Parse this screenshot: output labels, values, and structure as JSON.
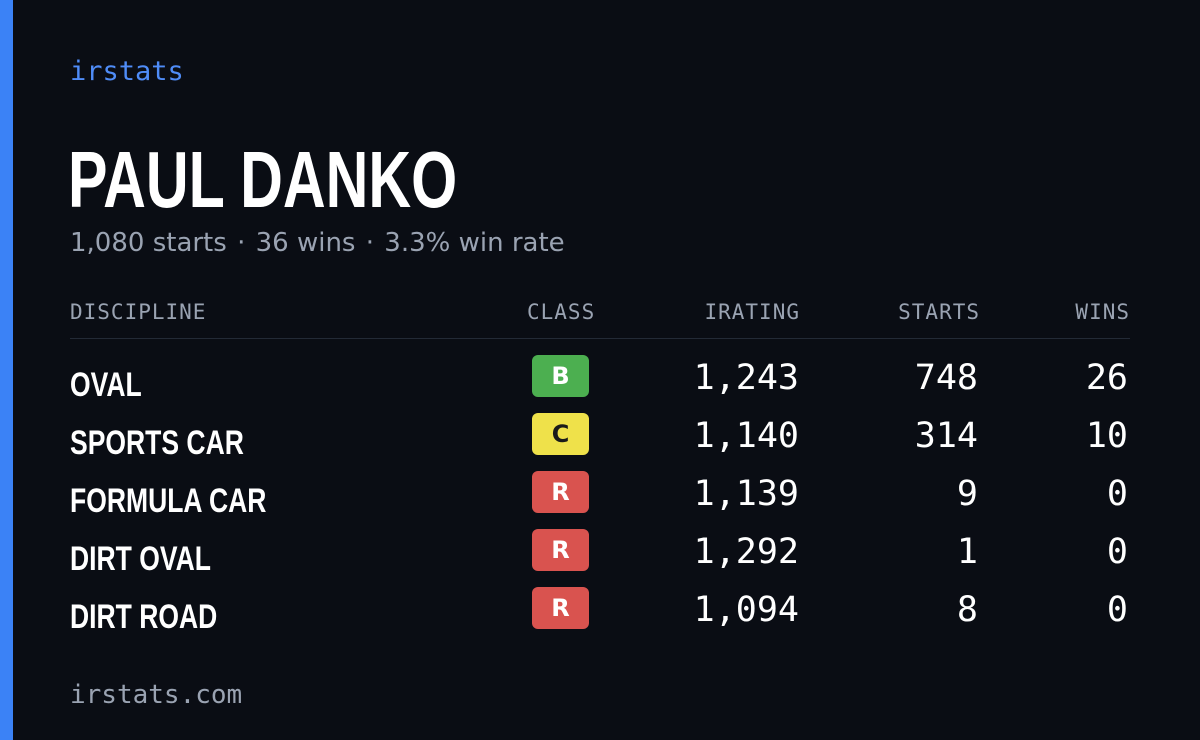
{
  "brand": "irstats",
  "driver": {
    "name": "PAUL DANKO",
    "starts": "1,080 starts",
    "wins": "36 wins",
    "win_rate": "3.3% win rate",
    "separator": "·"
  },
  "table": {
    "headers": {
      "discipline": "DISCIPLINE",
      "class": "CLASS",
      "irating": "IRATING",
      "starts": "STARTS",
      "wins": "WINS"
    },
    "rows": [
      {
        "discipline": "OVAL",
        "class": "B",
        "class_bg": "#4caf50",
        "class_fg": "#ffffff",
        "irating": "1,243",
        "starts": "748",
        "wins": "26"
      },
      {
        "discipline": "SPORTS CAR",
        "class": "C",
        "class_bg": "#efe14a",
        "class_fg": "#1a1a1a",
        "irating": "1,140",
        "starts": "314",
        "wins": "10"
      },
      {
        "discipline": "FORMULA CAR",
        "class": "R",
        "class_bg": "#d9534f",
        "class_fg": "#ffffff",
        "irating": "1,139",
        "starts": "9",
        "wins": "0"
      },
      {
        "discipline": "DIRT OVAL",
        "class": "R",
        "class_bg": "#d9534f",
        "class_fg": "#ffffff",
        "irating": "1,292",
        "starts": "1",
        "wins": "0"
      },
      {
        "discipline": "DIRT ROAD",
        "class": "R",
        "class_bg": "#d9534f",
        "class_fg": "#ffffff",
        "irating": "1,094",
        "starts": "8",
        "wins": "0"
      }
    ]
  },
  "footer": "irstats.com",
  "colors": {
    "background": "#0a0d14",
    "accent": "#3b82f6",
    "muted_text": "#9aa3b2"
  }
}
